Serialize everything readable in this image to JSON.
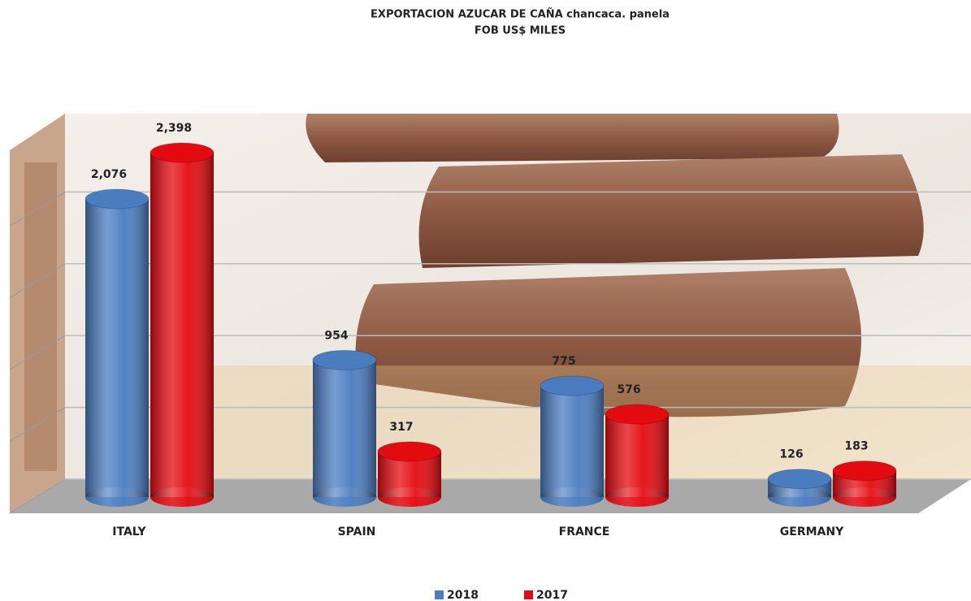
{
  "chart_data": {
    "type": "bar3d",
    "title": "EXPORTACION AZUCAR DE CAÑA chancaca. panela",
    "subtitle": "FOB US$ MILES",
    "categories": [
      "ITALY",
      "SPAIN",
      "FRANCE",
      "GERMANY"
    ],
    "series": [
      {
        "name": "2018",
        "color": "#4a7cc0",
        "values": [
          2076,
          954,
          775,
          126
        ],
        "value_labels": [
          "2,076",
          "954",
          "775",
          "126"
        ]
      },
      {
        "name": "2017",
        "color": "#e30a10",
        "values": [
          2398,
          317,
          576,
          183
        ],
        "value_labels": [
          "2,398",
          "317",
          "576",
          "183"
        ]
      }
    ],
    "ylim": [
      0,
      2500
    ],
    "yticks": [
      0,
      500,
      1000,
      1500,
      2000
    ],
    "grid": true,
    "legend": "bottom"
  }
}
